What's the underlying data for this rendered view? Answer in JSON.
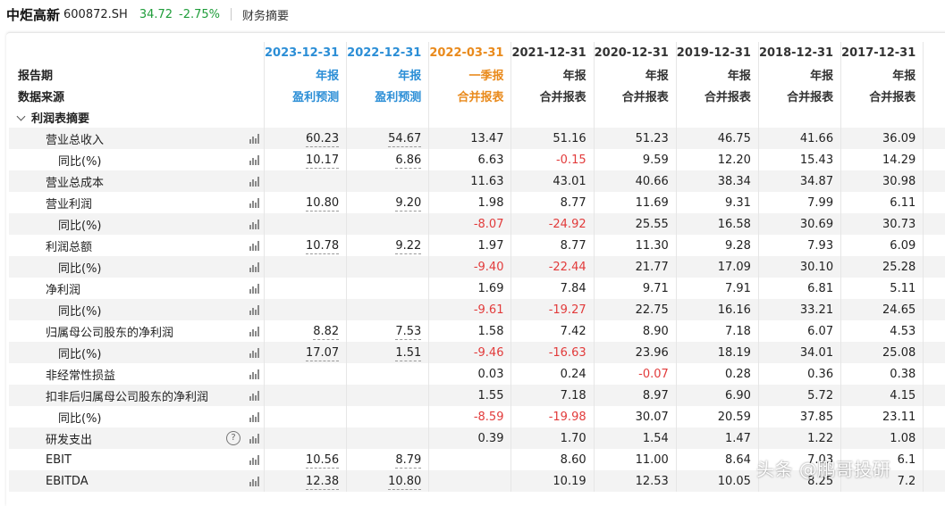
{
  "header": {
    "stock_name": "中炬高新",
    "stock_code": "600872.SH",
    "price": "34.72",
    "change": "-2.75%",
    "tab": "财务摘要"
  },
  "columns": [
    {
      "date": "2023-12-31",
      "type": "年报",
      "source": "盈利预测",
      "style": "forecast"
    },
    {
      "date": "2022-12-31",
      "type": "年报",
      "source": "盈利预测",
      "style": "forecast"
    },
    {
      "date": "2022-03-31",
      "type": "一季报",
      "source": "合并报表",
      "style": "quarter"
    },
    {
      "date": "2021-12-31",
      "type": "年报",
      "source": "合并报表",
      "style": "normal"
    },
    {
      "date": "2020-12-31",
      "type": "年报",
      "source": "合并报表",
      "style": "normal"
    },
    {
      "date": "2019-12-31",
      "type": "年报",
      "source": "合并报表",
      "style": "normal"
    },
    {
      "date": "2018-12-31",
      "type": "年报",
      "source": "合并报表",
      "style": "normal"
    },
    {
      "date": "2017-12-31",
      "type": "年报",
      "source": "合并报表",
      "style": "normal"
    },
    {
      "date": "",
      "type": "",
      "source": "",
      "style": "normal"
    }
  ],
  "labels": {
    "period": "报告期",
    "source": "数据来源",
    "section": "利润表摘要"
  },
  "rows": [
    {
      "label": "营业总收入",
      "indent": 1,
      "values": [
        "60.23",
        "54.67",
        "13.47",
        "51.16",
        "51.23",
        "46.75",
        "41.66",
        "36.09",
        ""
      ]
    },
    {
      "label": "同比(%)",
      "indent": 2,
      "values": [
        "10.17",
        "6.86",
        "6.63",
        "-0.15",
        "9.59",
        "12.20",
        "15.43",
        "14.29",
        ""
      ]
    },
    {
      "label": "营业总成本",
      "indent": 1,
      "values": [
        "",
        "",
        "11.63",
        "43.01",
        "40.66",
        "38.34",
        "34.87",
        "30.98",
        ""
      ]
    },
    {
      "label": "营业利润",
      "indent": 1,
      "values": [
        "10.80",
        "9.20",
        "1.98",
        "8.77",
        "11.69",
        "9.31",
        "7.99",
        "6.11",
        ""
      ]
    },
    {
      "label": "同比(%)",
      "indent": 2,
      "values": [
        "",
        "",
        "-8.07",
        "-24.92",
        "25.55",
        "16.58",
        "30.69",
        "30.73",
        ""
      ]
    },
    {
      "label": "利润总额",
      "indent": 1,
      "values": [
        "10.78",
        "9.22",
        "1.97",
        "8.77",
        "11.30",
        "9.28",
        "7.93",
        "6.09",
        ""
      ]
    },
    {
      "label": "同比(%)",
      "indent": 2,
      "values": [
        "",
        "",
        "-9.40",
        "-22.44",
        "21.77",
        "17.09",
        "30.10",
        "25.28",
        ""
      ]
    },
    {
      "label": "净利润",
      "indent": 1,
      "values": [
        "",
        "",
        "1.69",
        "7.84",
        "9.71",
        "7.91",
        "6.81",
        "5.11",
        ""
      ]
    },
    {
      "label": "同比(%)",
      "indent": 2,
      "values": [
        "",
        "",
        "-9.61",
        "-19.27",
        "22.75",
        "16.16",
        "33.21",
        "24.65",
        ""
      ]
    },
    {
      "label": "归属母公司股东的净利润",
      "indent": 1,
      "values": [
        "8.82",
        "7.53",
        "1.58",
        "7.42",
        "8.90",
        "7.18",
        "6.07",
        "4.53",
        ""
      ]
    },
    {
      "label": "同比(%)",
      "indent": 2,
      "values": [
        "17.07",
        "1.51",
        "-9.46",
        "-16.63",
        "23.96",
        "18.19",
        "34.01",
        "25.08",
        ""
      ]
    },
    {
      "label": "非经常性损益",
      "indent": 1,
      "values": [
        "",
        "",
        "0.03",
        "0.24",
        "-0.07",
        "0.28",
        "0.36",
        "0.38",
        ""
      ]
    },
    {
      "label": "扣非后归属母公司股东的净利润",
      "indent": 1,
      "values": [
        "",
        "",
        "1.55",
        "7.18",
        "8.97",
        "6.90",
        "5.72",
        "4.15",
        ""
      ]
    },
    {
      "label": "同比(%)",
      "indent": 2,
      "values": [
        "",
        "",
        "-8.59",
        "-19.98",
        "30.07",
        "20.59",
        "37.85",
        "23.11",
        ""
      ]
    },
    {
      "label": "研发支出",
      "indent": 1,
      "help": true,
      "values": [
        "",
        "",
        "0.39",
        "1.70",
        "1.54",
        "1.47",
        "1.22",
        "1.08",
        ""
      ]
    },
    {
      "label": "EBIT",
      "indent": 1,
      "values": [
        "10.56",
        "8.79",
        "",
        "8.60",
        "11.00",
        "8.64",
        "7.03",
        "6.1",
        ""
      ]
    },
    {
      "label": "EBITDA",
      "indent": 1,
      "values": [
        "12.38",
        "10.80",
        "",
        "10.19",
        "12.53",
        "10.05",
        "8.25",
        "7.2",
        ""
      ]
    }
  ],
  "watermark": "头条 @鹏哥投研",
  "colors": {
    "up_green": "#1f9d3a",
    "forecast_blue": "#2b8ed6",
    "quarter_orange": "#e98a1c",
    "negative_red": "#e23b3b"
  }
}
